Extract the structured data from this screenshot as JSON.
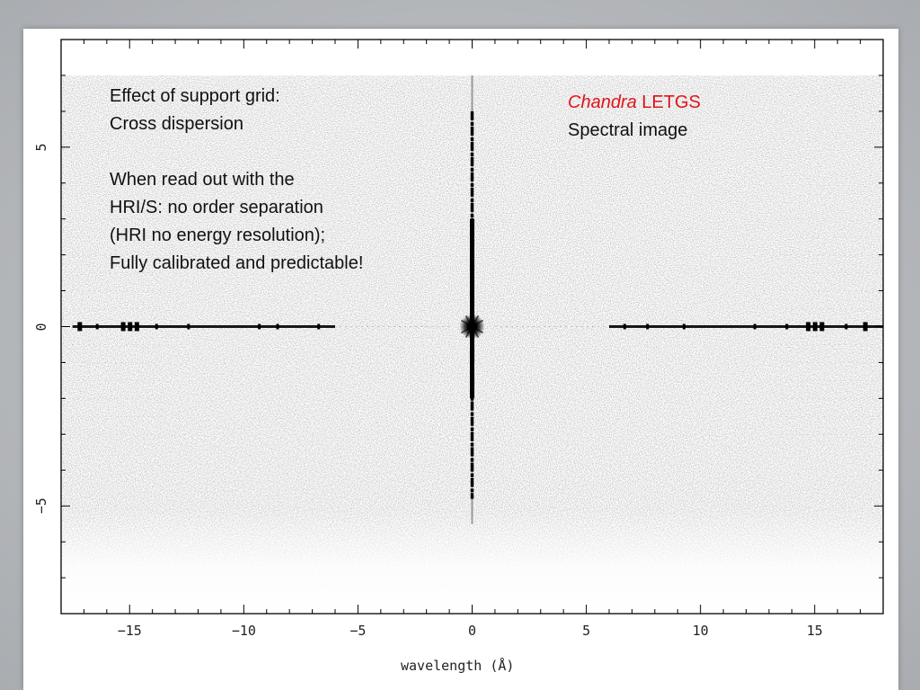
{
  "annotation_left": {
    "heading_line1": "Effect of support grid:",
    "heading_line2": "Cross dispersion",
    "body_line1": "When read out with the",
    "body_line2": "HRI/S: no order separation",
    "body_line3": "(HRI no energy resolution);",
    "body_line4": "Fully calibrated and predictable!"
  },
  "annotation_right": {
    "instrument_name": "Chandra",
    "instrument_suffix": " LETGS",
    "subtitle": "Spectral image"
  },
  "colors": {
    "brand": "#e0141c",
    "text": "#111111",
    "image_ink": "#000000"
  },
  "chart_data": {
    "type": "heatmap",
    "xlabel": "wavelength (Å)",
    "ylabel": "",
    "xlim": [
      -18,
      18
    ],
    "ylim": [
      -8,
      8
    ],
    "x_ticks": [
      -15,
      -10,
      -5,
      0,
      5,
      10,
      15
    ],
    "x_tick_labels": [
      "−15",
      "−10",
      "−5",
      "0",
      "5",
      "10",
      "15"
    ],
    "y_ticks": [
      -5,
      0,
      5
    ],
    "y_tick_labels": [
      "−5",
      "0",
      "5"
    ],
    "features": [
      {
        "name": "zeroth-order",
        "x": 0,
        "y": 0
      },
      {
        "name": "cross-dispersion-streak",
        "x": 0,
        "y_range": [
          -5.5,
          7
        ]
      },
      {
        "name": "minus-order-spectrum",
        "x_range": [
          -17.5,
          -6
        ],
        "y": 0
      },
      {
        "name": "plus-order-spectrum",
        "x_range": [
          6,
          18
        ],
        "y": 0
      }
    ]
  }
}
